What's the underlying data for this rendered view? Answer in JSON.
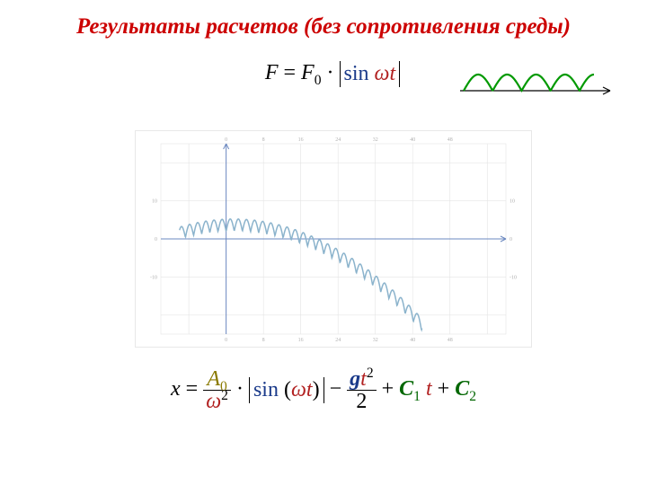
{
  "title": "Результаты расчетов (без сопротивления среды)",
  "title_color": "#cc0000",
  "title_fontsize": 25,
  "formula_top": {
    "F": "F",
    "F0": "F",
    "F0_sub": "0",
    "dot": "·",
    "sin": "sin",
    "omega": "ω",
    "t": "t",
    "sin_color": "#1a3a8a",
    "omega_color": "#b22222",
    "t_color": "#b22222"
  },
  "mini_graph": {
    "stroke": "#009900",
    "axis_color": "#000000",
    "stroke_width": 2.2,
    "amp": 18,
    "half_periods": 4.5,
    "width": 175,
    "height": 55
  },
  "main_chart": {
    "type": "line",
    "background_color": "#ffffff",
    "border_color": "#e8e8e8",
    "grid_color": "#e4e4e4",
    "axis_color": "#6b88c0",
    "curve_color": "#8bb3cc",
    "curve_width": 1.5,
    "xlim": [
      -14,
      60
    ],
    "ylim": [
      -25,
      25
    ],
    "xtick_step": 8,
    "ytick_step": 10,
    "y_axis_at_x": 0,
    "x_axis_at_y": 0,
    "tick_labels_y": [
      -10,
      0,
      10
    ],
    "tick_labels_x": [
      0,
      8,
      16,
      24,
      32,
      40,
      48
    ],
    "tick_label_color": "#b0b0b0",
    "tick_label_fontsize": 6,
    "curve_params": {
      "A": 3.2,
      "omega": 1.8,
      "g_half": 0.016,
      "C1": 0.05,
      "C2": 2.0,
      "x_start": -10,
      "x_end": 42
    }
  },
  "formula_bottom": {
    "x": "x",
    "A0": "A",
    "A0_sub": "0",
    "omega": "ω",
    "sq": "2",
    "dot": "·",
    "sin": "sin",
    "t": "t",
    "g": "g",
    "two": "2",
    "C1": "C",
    "C1_sub": "1",
    "C2": "C",
    "C2_sub": "2",
    "plus": "+",
    "minus": "−",
    "lparen": "(",
    "rparen": ")",
    "A_color": "#8a7a00",
    "omega_color": "#b22222",
    "sin_color": "#1a3a8a",
    "g_color": "#1a3a8a",
    "t_color": "#b22222",
    "C_color": "#006600"
  }
}
